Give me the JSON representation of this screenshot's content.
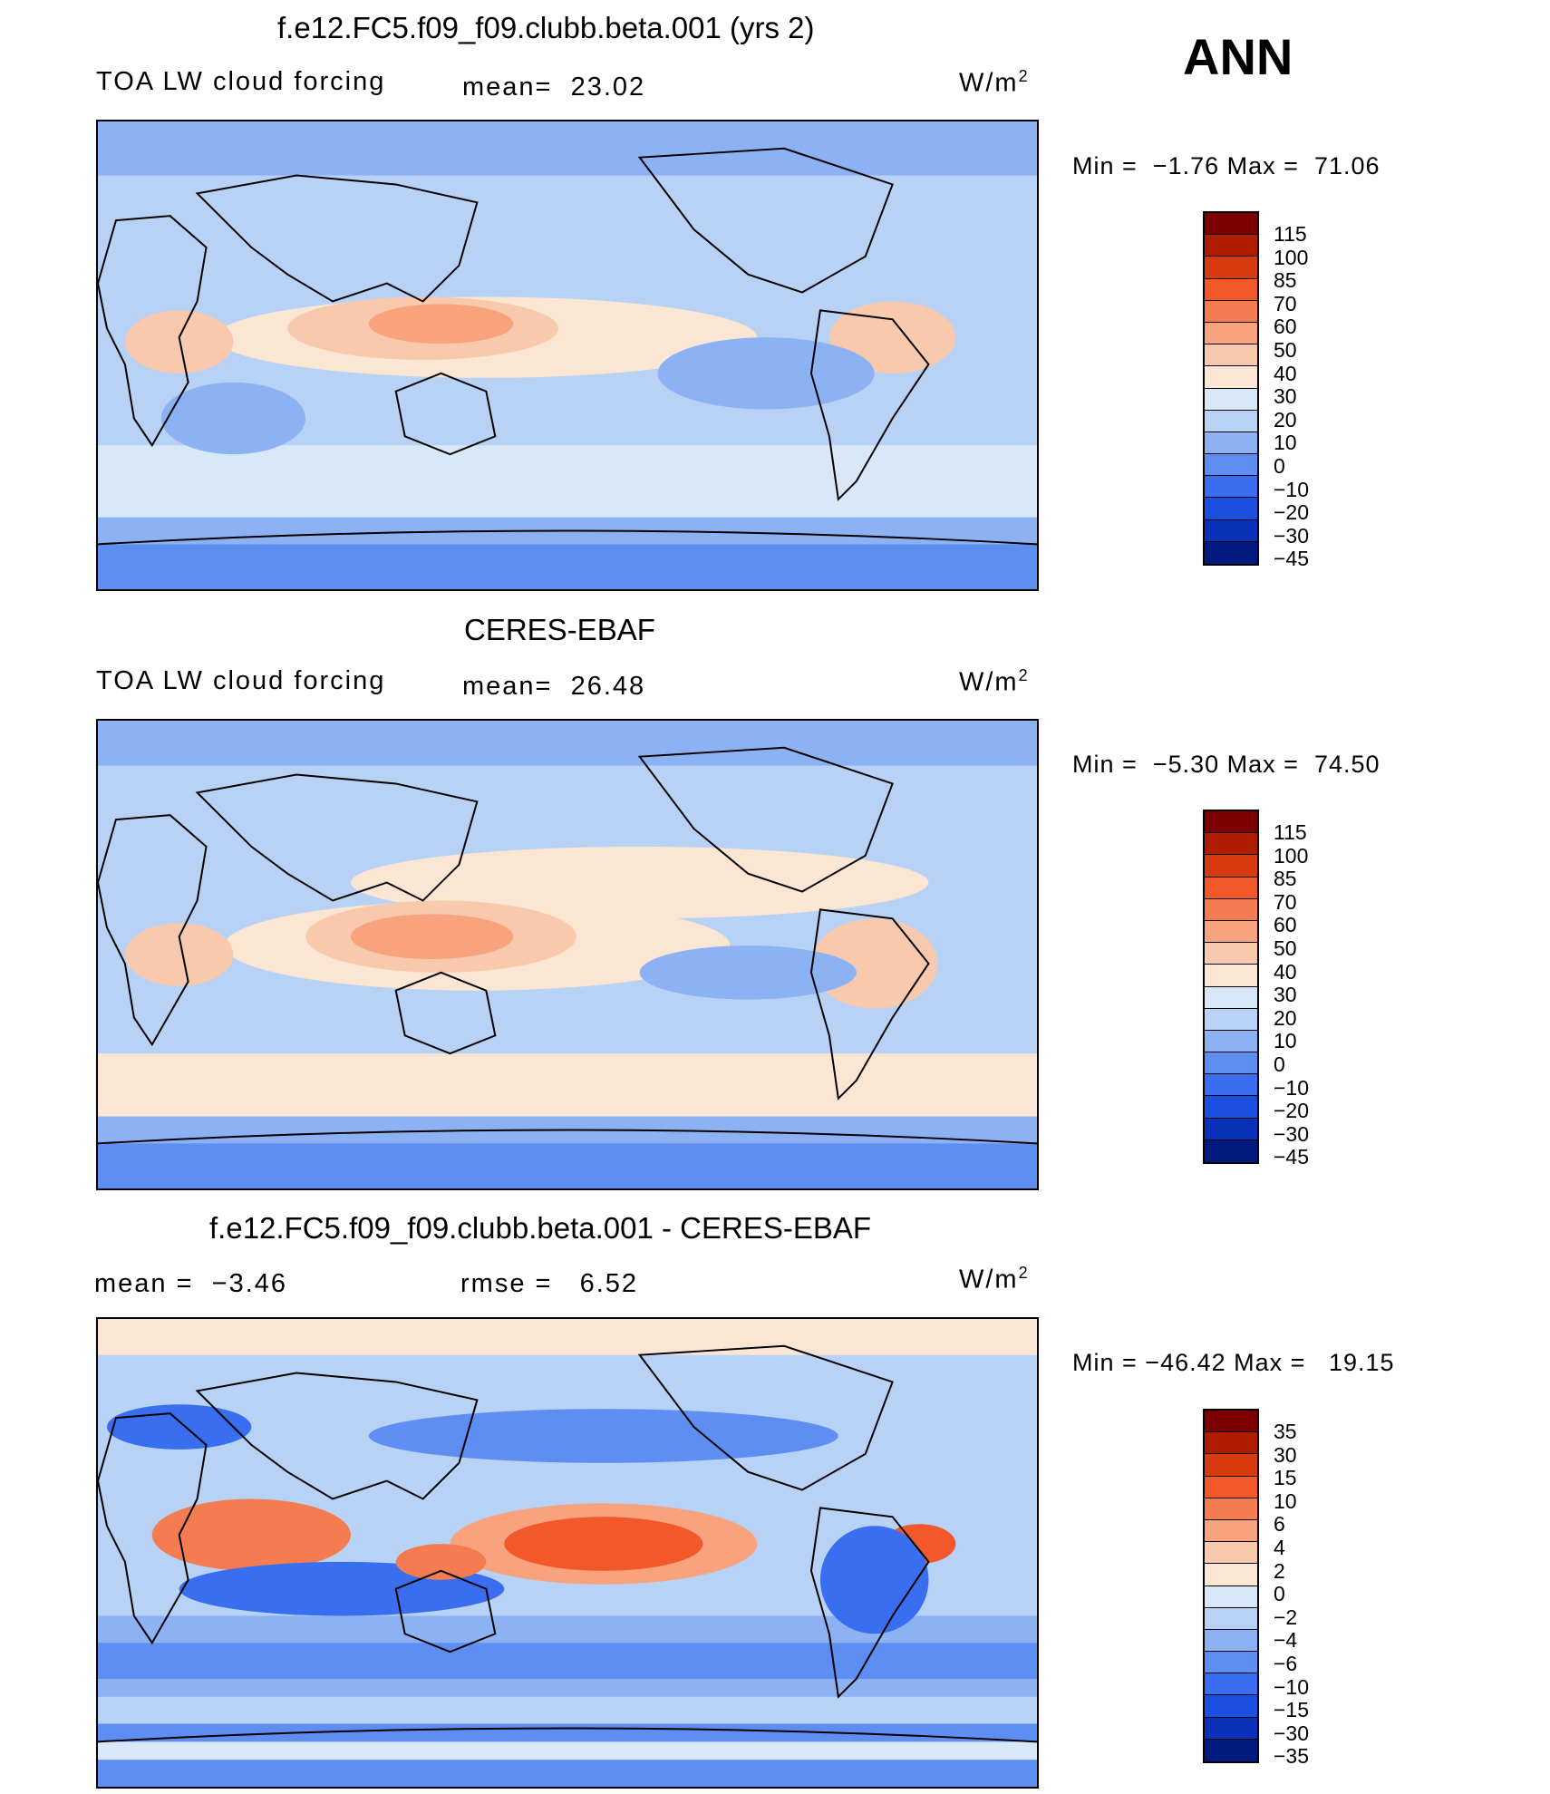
{
  "season": "ANN",
  "panels": [
    {
      "title": "f.e12.FC5.f09_f09.clubb.beta.001 (yrs 2)",
      "left_label": "TOA LW cloud forcing",
      "mean_label": "mean=",
      "mean_value": "23.02",
      "units_base": "W/m",
      "units_exp": "2",
      "min_label": "Min =",
      "min_value": "−1.76",
      "max_label": "Max =",
      "max_value": "71.06",
      "colorbar": {
        "labels": [
          "115",
          "100",
          "85",
          "70",
          "60",
          "50",
          "40",
          "30",
          "20",
          "10",
          "0",
          "−10",
          "−20",
          "−30",
          "−45"
        ],
        "colors": [
          "#7d0000",
          "#b01c00",
          "#d83a10",
          "#f2582a",
          "#f47c50",
          "#f8a27e",
          "#f9c9ae",
          "#fbe6d4",
          "#d9e8f8",
          "#b8d2f6",
          "#8db2f4",
          "#5f8ef2",
          "#3a6ef0",
          "#1a4fe0",
          "#0a32b8",
          "#001a80"
        ]
      },
      "map_style": "model"
    },
    {
      "title": "CERES-EBAF",
      "left_label": "TOA LW cloud forcing",
      "mean_label": "mean=",
      "mean_value": "26.48",
      "units_base": "W/m",
      "units_exp": "2",
      "min_label": "Min =",
      "min_value": "−5.30",
      "max_label": "Max =",
      "max_value": "74.50",
      "colorbar": {
        "labels": [
          "115",
          "100",
          "85",
          "70",
          "60",
          "50",
          "40",
          "30",
          "20",
          "10",
          "0",
          "−10",
          "−20",
          "−30",
          "−45"
        ],
        "colors": [
          "#7d0000",
          "#b01c00",
          "#d83a10",
          "#f2582a",
          "#f47c50",
          "#f8a27e",
          "#f9c9ae",
          "#fbe6d4",
          "#d9e8f8",
          "#b8d2f6",
          "#8db2f4",
          "#5f8ef2",
          "#3a6ef0",
          "#1a4fe0",
          "#0a32b8",
          "#001a80"
        ]
      },
      "map_style": "obs"
    },
    {
      "title": "f.e12.FC5.f09_f09.clubb.beta.001 - CERES-EBAF",
      "left_label": "mean =",
      "mean_label": "",
      "mean_value": "−3.46",
      "rmse_label": "rmse =",
      "rmse_value": "6.52",
      "units_base": "W/m",
      "units_exp": "2",
      "min_label": "Min =",
      "min_value": "−46.42",
      "max_label": "Max =",
      "max_value": "19.15",
      "colorbar": {
        "labels": [
          "35",
          "30",
          "15",
          "10",
          "6",
          "4",
          "2",
          "0",
          "−2",
          "−4",
          "−6",
          "−10",
          "−15",
          "−30",
          "−35"
        ],
        "colors": [
          "#7d0000",
          "#b01c00",
          "#d83a10",
          "#f2582a",
          "#f47c50",
          "#f8a27e",
          "#f9c9ae",
          "#fbe6d4",
          "#d9e8f8",
          "#b8d2f6",
          "#8db2f4",
          "#5f8ef2",
          "#3a6ef0",
          "#1a4fe0",
          "#0a32b8",
          "#001a80"
        ]
      },
      "map_style": "diff"
    }
  ]
}
